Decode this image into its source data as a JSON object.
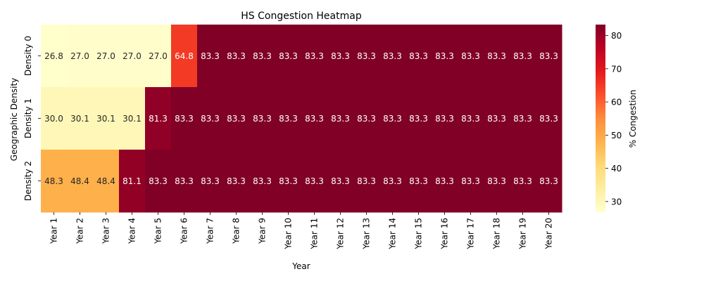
{
  "chart_data": {
    "type": "heatmap",
    "title": "HS Congestion Heatmap",
    "xlabel": "Year",
    "ylabel": "Geographic Density",
    "x_categories": [
      "Year 1",
      "Year 2",
      "Year 3",
      "Year 4",
      "Year 5",
      "Year 6",
      "Year 7",
      "Year 8",
      "Year 9",
      "Year 10",
      "Year 11",
      "Year 12",
      "Year 13",
      "Year 14",
      "Year 15",
      "Year 16",
      "Year 17",
      "Year 18",
      "Year 19",
      "Year 20"
    ],
    "y_categories": [
      "Density 0",
      "Density 1",
      "Density 2"
    ],
    "values": [
      [
        26.8,
        27.0,
        27.0,
        27.0,
        27.0,
        64.8,
        83.3,
        83.3,
        83.3,
        83.3,
        83.3,
        83.3,
        83.3,
        83.3,
        83.3,
        83.3,
        83.3,
        83.3,
        83.3,
        83.3
      ],
      [
        30.0,
        30.1,
        30.1,
        30.1,
        81.3,
        83.3,
        83.3,
        83.3,
        83.3,
        83.3,
        83.3,
        83.3,
        83.3,
        83.3,
        83.3,
        83.3,
        83.3,
        83.3,
        83.3,
        83.3
      ],
      [
        48.3,
        48.4,
        48.4,
        81.1,
        83.3,
        83.3,
        83.3,
        83.3,
        83.3,
        83.3,
        83.3,
        83.3,
        83.3,
        83.3,
        83.3,
        83.3,
        83.3,
        83.3,
        83.3,
        83.3
      ]
    ],
    "colorbar": {
      "label": "% Congestion",
      "vmin": 26.8,
      "vmax": 83.3,
      "ticks": [
        30,
        40,
        50,
        60,
        70,
        80
      ],
      "colormap": "YlOrRd"
    },
    "annotations": true
  }
}
